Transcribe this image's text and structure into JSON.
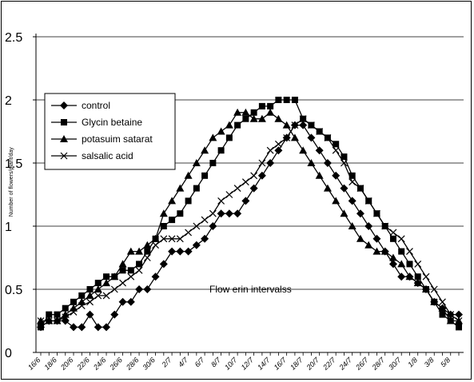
{
  "chart_data": {
    "type": "line",
    "title": "",
    "xlabel": "",
    "ylabel": "Number of flowers/plant/day",
    "annotation": "Flow erin intervalss",
    "ylim": [
      0,
      2.5
    ],
    "yticks": [
      "0",
      "0.5",
      "1",
      "1.5",
      "2",
      "2.5"
    ],
    "grid": "horizontal",
    "legend_position": "left",
    "categories": [
      "16/6",
      "17/6",
      "18/6",
      "19/6",
      "20/6",
      "21/6",
      "22/6",
      "23/6",
      "24/6",
      "25/6",
      "26/6",
      "27/6",
      "28/6",
      "29/6",
      "30/6",
      "1/7",
      "2/7",
      "3/7",
      "4/7",
      "5/7",
      "6/7",
      "7/7",
      "8/7",
      "9/7",
      "10/7",
      "11/7",
      "12/7",
      "13/7",
      "14/7",
      "15/7",
      "16/7",
      "17/7",
      "18/7",
      "19/7",
      "20/7",
      "21/7",
      "22/7",
      "23/7",
      "24/7",
      "25/7",
      "26/7",
      "27/7",
      "28/7",
      "29/7",
      "30/7",
      "31/7",
      "1/8",
      "2/8",
      "3/8",
      "4/8",
      "5/8",
      "6/8"
    ],
    "tick_labels": [
      "16/6",
      "18/6",
      "20/6",
      "22/6",
      "24/6",
      "26/6",
      "28/6",
      "30/6",
      "2/7",
      "4/7",
      "6/7",
      "8/7",
      "10/7",
      "12/7",
      "14/7",
      "16/7",
      "18/7",
      "20/7",
      "22/7",
      "24/7",
      "26/7",
      "28/7",
      "30/7",
      "1/8",
      "3/8",
      "5/8"
    ],
    "series": [
      {
        "name": "control",
        "marker": "diamond",
        "values": [
          0.2,
          0.25,
          0.25,
          0.25,
          0.2,
          0.2,
          0.3,
          0.2,
          0.2,
          0.3,
          0.4,
          0.4,
          0.5,
          0.5,
          0.6,
          0.7,
          0.8,
          0.8,
          0.8,
          0.85,
          0.9,
          1.0,
          1.1,
          1.1,
          1.1,
          1.2,
          1.3,
          1.4,
          1.5,
          1.6,
          1.7,
          1.8,
          1.8,
          1.7,
          1.6,
          1.5,
          1.4,
          1.3,
          1.2,
          1.1,
          1.0,
          0.9,
          0.8,
          0.7,
          0.6,
          0.6,
          0.55,
          0.5,
          0.4,
          0.35,
          0.3,
          0.3
        ]
      },
      {
        "name": "Glycin betaine",
        "marker": "square",
        "values": [
          0.2,
          0.3,
          0.3,
          0.35,
          0.4,
          0.45,
          0.5,
          0.55,
          0.6,
          0.6,
          0.65,
          0.65,
          0.7,
          0.8,
          0.9,
          1.0,
          1.05,
          1.1,
          1.2,
          1.3,
          1.4,
          1.5,
          1.6,
          1.7,
          1.8,
          1.85,
          1.9,
          1.95,
          1.95,
          2.0,
          2.0,
          2.0,
          1.85,
          1.8,
          1.75,
          1.7,
          1.65,
          1.55,
          1.4,
          1.3,
          1.2,
          1.1,
          1.0,
          0.9,
          0.8,
          0.7,
          0.6,
          0.5,
          0.4,
          0.3,
          0.25,
          0.2
        ]
      },
      {
        "name": "potasuim satarat",
        "marker": "triangle",
        "values": [
          0.25,
          0.25,
          0.25,
          0.3,
          0.35,
          0.4,
          0.45,
          0.5,
          0.55,
          0.6,
          0.7,
          0.8,
          0.8,
          0.85,
          0.9,
          1.1,
          1.2,
          1.3,
          1.4,
          1.5,
          1.6,
          1.7,
          1.75,
          1.8,
          1.9,
          1.9,
          1.85,
          1.85,
          1.9,
          1.85,
          1.8,
          1.7,
          1.6,
          1.5,
          1.4,
          1.3,
          1.2,
          1.1,
          1.0,
          0.9,
          0.85,
          0.8,
          0.8,
          0.75,
          0.7,
          0.6,
          0.55,
          0.5,
          0.4,
          0.35,
          0.25,
          0.25
        ]
      },
      {
        "name": "salsalic acid",
        "marker": "x",
        "values": [
          0.25,
          0.25,
          0.25,
          0.28,
          0.32,
          0.37,
          0.4,
          0.45,
          0.45,
          0.5,
          0.55,
          0.6,
          0.65,
          0.75,
          0.85,
          0.9,
          0.9,
          0.9,
          0.95,
          1.0,
          1.05,
          1.1,
          1.2,
          1.25,
          1.3,
          1.35,
          1.4,
          1.5,
          1.6,
          1.65,
          1.7,
          1.8,
          1.85,
          1.8,
          1.75,
          1.7,
          1.6,
          1.5,
          1.35,
          1.3,
          1.2,
          1.1,
          1.0,
          0.95,
          0.9,
          0.8,
          0.7,
          0.6,
          0.5,
          0.4,
          0.3,
          0.25
        ]
      }
    ]
  }
}
